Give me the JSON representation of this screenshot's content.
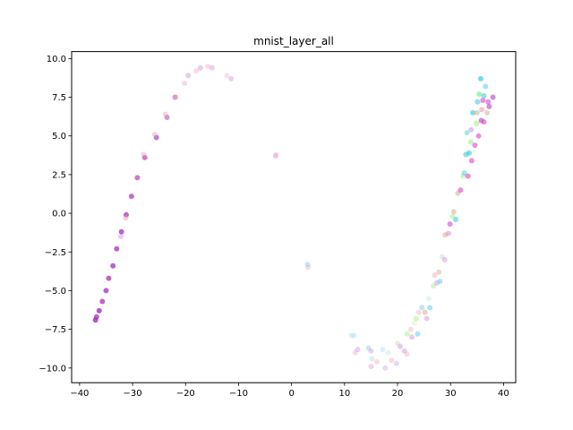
{
  "chart_data": {
    "type": "scatter",
    "title": "mnist_layer_all",
    "xlabel": "",
    "ylabel": "",
    "xlim": [
      -41.5,
      42.3
    ],
    "ylim": [
      -10.95,
      10.45
    ],
    "xticks": [
      -40,
      -30,
      -20,
      -10,
      0,
      10,
      20,
      30,
      40
    ],
    "yticks": [
      -10.0,
      -7.5,
      -5.0,
      -2.5,
      0.0,
      2.5,
      5.0,
      7.5,
      10.0
    ],
    "ytick_labels": [
      "−10.0",
      "−7.5",
      "−5.0",
      "−2.5",
      "0.0",
      "2.5",
      "5.0",
      "7.5",
      "10.0"
    ],
    "xtick_labels": [
      "−40",
      "−30",
      "−20",
      "−10",
      "0",
      "10",
      "20",
      "30",
      "40"
    ],
    "grid": false,
    "legend": "none",
    "points": [
      {
        "x": -37.0,
        "y": -6.9,
        "c": "#9922bb",
        "a": 0.75
      },
      {
        "x": -36.8,
        "y": -6.7,
        "c": "#aa22aa",
        "a": 0.7
      },
      {
        "x": -36.3,
        "y": -6.3,
        "c": "#9922bb",
        "a": 0.75
      },
      {
        "x": -35.7,
        "y": -5.7,
        "c": "#aa22aa",
        "a": 0.7
      },
      {
        "x": -35.0,
        "y": -5.0,
        "c": "#9922bb",
        "a": 0.7
      },
      {
        "x": -34.5,
        "y": -4.2,
        "c": "#aa22aa",
        "a": 0.7
      },
      {
        "x": -33.7,
        "y": -3.4,
        "c": "#9922bb",
        "a": 0.7
      },
      {
        "x": -33.0,
        "y": -2.3,
        "c": "#aa22aa",
        "a": 0.7
      },
      {
        "x": -32.1,
        "y": -1.2,
        "c": "#9922bb",
        "a": 0.7
      },
      {
        "x": -32.2,
        "y": -1.5,
        "c": "#dd88dd",
        "a": 0.45
      },
      {
        "x": -31.2,
        "y": -0.1,
        "c": "#aa22aa",
        "a": 0.7
      },
      {
        "x": -31.3,
        "y": -0.3,
        "c": "#ee99bb",
        "a": 0.45
      },
      {
        "x": -30.2,
        "y": 1.1,
        "c": "#9922bb",
        "a": 0.65
      },
      {
        "x": -29.1,
        "y": 2.3,
        "c": "#aa22aa",
        "a": 0.6
      },
      {
        "x": -27.7,
        "y": 3.6,
        "c": "#aa22aa",
        "a": 0.6
      },
      {
        "x": -27.9,
        "y": 3.8,
        "c": "#ee99bb",
        "a": 0.45
      },
      {
        "x": -25.5,
        "y": 4.9,
        "c": "#9922bb",
        "a": 0.6
      },
      {
        "x": -25.8,
        "y": 5.1,
        "c": "#ee99aa",
        "a": 0.45
      },
      {
        "x": -23.5,
        "y": 6.2,
        "c": "#aa44bb",
        "a": 0.55
      },
      {
        "x": -23.8,
        "y": 6.4,
        "c": "#ee99aa",
        "a": 0.45
      },
      {
        "x": -22.0,
        "y": 7.5,
        "c": "#aa44bb",
        "a": 0.5
      },
      {
        "x": -21.8,
        "y": 7.5,
        "c": "#ee99aa",
        "a": 0.4
      },
      {
        "x": -20.2,
        "y": 8.4,
        "c": "#ee99aa",
        "a": 0.35
      },
      {
        "x": -19.5,
        "y": 8.9,
        "c": "#cc88dd",
        "a": 0.45
      },
      {
        "x": -18.0,
        "y": 9.2,
        "c": "#ee99aa",
        "a": 0.35
      },
      {
        "x": -17.2,
        "y": 9.4,
        "c": "#cc88dd",
        "a": 0.45
      },
      {
        "x": -15.8,
        "y": 9.5,
        "c": "#ee99aa",
        "a": 0.35
      },
      {
        "x": -15.0,
        "y": 9.4,
        "c": "#cc88dd",
        "a": 0.4
      },
      {
        "x": -12.2,
        "y": 8.9,
        "c": "#ee99aa",
        "a": 0.3
      },
      {
        "x": -11.4,
        "y": 8.7,
        "c": "#cc88dd",
        "a": 0.4
      },
      {
        "x": -3.0,
        "y": 3.7,
        "c": "#cc88dd",
        "a": 0.4
      },
      {
        "x": -2.9,
        "y": 3.8,
        "c": "#ee99aa",
        "a": 0.3
      },
      {
        "x": 3.0,
        "y": -3.3,
        "c": "#88ccdd",
        "a": 0.45
      },
      {
        "x": 3.1,
        "y": -3.5,
        "c": "#ee99aa",
        "a": 0.35
      },
      {
        "x": 11.3,
        "y": -7.9,
        "c": "#aaddee",
        "a": 0.45
      },
      {
        "x": 11.8,
        "y": -7.9,
        "c": "#aaddee",
        "a": 0.45
      },
      {
        "x": 12.0,
        "y": -9.0,
        "c": "#ee99aa",
        "a": 0.35
      },
      {
        "x": 12.5,
        "y": -8.8,
        "c": "#cc88dd",
        "a": 0.4
      },
      {
        "x": 14.5,
        "y": -8.7,
        "c": "#88ccdd",
        "a": 0.45
      },
      {
        "x": 15.0,
        "y": -8.9,
        "c": "#cc88dd",
        "a": 0.4
      },
      {
        "x": 15.2,
        "y": -9.4,
        "c": "#aaddee",
        "a": 0.45
      },
      {
        "x": 15.0,
        "y": -9.9,
        "c": "#cc88dd",
        "a": 0.35
      },
      {
        "x": 16.1,
        "y": -9.6,
        "c": "#ee99aa",
        "a": 0.35
      },
      {
        "x": 17.2,
        "y": -8.8,
        "c": "#aaddee",
        "a": 0.4
      },
      {
        "x": 17.7,
        "y": -10.0,
        "c": "#cc88dd",
        "a": 0.35
      },
      {
        "x": 18.2,
        "y": -9.0,
        "c": "#bbeecc",
        "a": 0.45
      },
      {
        "x": 18.9,
        "y": -9.5,
        "c": "#ee99aa",
        "a": 0.35
      },
      {
        "x": 19.8,
        "y": -9.7,
        "c": "#cc88dd",
        "a": 0.35
      },
      {
        "x": 20.0,
        "y": -8.4,
        "c": "#ccddaa",
        "a": 0.45
      },
      {
        "x": 20.5,
        "y": -8.6,
        "c": "#cc88dd",
        "a": 0.45
      },
      {
        "x": 21.3,
        "y": -8.9,
        "c": "#cc88dd",
        "a": 0.45
      },
      {
        "x": 21.8,
        "y": -9.1,
        "c": "#ee99aa",
        "a": 0.35
      },
      {
        "x": 21.8,
        "y": -7.8,
        "c": "#aaee88",
        "a": 0.5
      },
      {
        "x": 22.5,
        "y": -7.5,
        "c": "#ee99aa",
        "a": 0.35
      },
      {
        "x": 22.7,
        "y": -8.0,
        "c": "#cc88dd",
        "a": 0.45
      },
      {
        "x": 23.2,
        "y": -7.1,
        "c": "#ddeebb",
        "a": 0.45
      },
      {
        "x": 23.5,
        "y": -6.8,
        "c": "#aaee88",
        "a": 0.5
      },
      {
        "x": 23.8,
        "y": -7.8,
        "c": "#66ccee",
        "a": 0.55
      },
      {
        "x": 24.0,
        "y": -6.4,
        "c": "#ee99aa",
        "a": 0.35
      },
      {
        "x": 24.6,
        "y": -6.1,
        "c": "#88ccdd",
        "a": 0.5
      },
      {
        "x": 25.2,
        "y": -6.4,
        "c": "#ccaa88",
        "a": 0.5
      },
      {
        "x": 25.5,
        "y": -6.8,
        "c": "#cc88dd",
        "a": 0.45
      },
      {
        "x": 26.1,
        "y": -6.1,
        "c": "#66ccee",
        "a": 0.55
      },
      {
        "x": 25.9,
        "y": -5.5,
        "c": "#bbeecc",
        "a": 0.45
      },
      {
        "x": 26.8,
        "y": -4.7,
        "c": "#aaee88",
        "a": 0.5
      },
      {
        "x": 27.0,
        "y": -4.0,
        "c": "#ee99aa",
        "a": 0.4
      },
      {
        "x": 27.4,
        "y": -4.5,
        "c": "#cc88dd",
        "a": 0.45
      },
      {
        "x": 28.0,
        "y": -4.4,
        "c": "#66ccee",
        "a": 0.55
      },
      {
        "x": 27.8,
        "y": -3.8,
        "c": "#ccaa88",
        "a": 0.45
      },
      {
        "x": 28.4,
        "y": -2.8,
        "c": "#bbddcc",
        "a": 0.45
      },
      {
        "x": 28.9,
        "y": -3.0,
        "c": "#cc88dd",
        "a": 0.45
      },
      {
        "x": 29.0,
        "y": -1.4,
        "c": "#ccaa88",
        "a": 0.5
      },
      {
        "x": 29.6,
        "y": -1.3,
        "c": "#cc88dd",
        "a": 0.5
      },
      {
        "x": 29.9,
        "y": -0.7,
        "c": "#dd44cc",
        "a": 0.6
      },
      {
        "x": 30.4,
        "y": -0.2,
        "c": "#aaee88",
        "a": 0.55
      },
      {
        "x": 30.6,
        "y": 0.1,
        "c": "#ccaa88",
        "a": 0.5
      },
      {
        "x": 31.0,
        "y": -0.4,
        "c": "#44ccdd",
        "a": 0.6
      },
      {
        "x": 31.4,
        "y": 1.3,
        "c": "#ccaa88",
        "a": 0.5
      },
      {
        "x": 31.9,
        "y": 1.5,
        "c": "#dd44cc",
        "a": 0.6
      },
      {
        "x": 32.4,
        "y": 2.4,
        "c": "#aaee88",
        "a": 0.55
      },
      {
        "x": 32.6,
        "y": 2.6,
        "c": "#66ccee",
        "a": 0.6
      },
      {
        "x": 32.9,
        "y": 3.8,
        "c": "#44ccdd",
        "a": 0.6
      },
      {
        "x": 33.3,
        "y": 2.4,
        "c": "#dd44cc",
        "a": 0.6
      },
      {
        "x": 33.5,
        "y": 3.9,
        "c": "#22ccdd",
        "a": 0.6
      },
      {
        "x": 33.1,
        "y": 5.2,
        "c": "#66ddcc",
        "a": 0.6
      },
      {
        "x": 33.8,
        "y": 4.6,
        "c": "#aaee88",
        "a": 0.6
      },
      {
        "x": 34.0,
        "y": 3.4,
        "c": "#dd44cc",
        "a": 0.6
      },
      {
        "x": 33.9,
        "y": 5.4,
        "c": "#cc88dd",
        "a": 0.5
      },
      {
        "x": 34.2,
        "y": 6.5,
        "c": "#22ccdd",
        "a": 0.6
      },
      {
        "x": 34.6,
        "y": 4.4,
        "c": "#dd44cc",
        "a": 0.6
      },
      {
        "x": 34.9,
        "y": 5.8,
        "c": "#aaee88",
        "a": 0.6
      },
      {
        "x": 35.0,
        "y": 6.5,
        "c": "#ccaa88",
        "a": 0.5
      },
      {
        "x": 35.3,
        "y": 5.0,
        "c": "#dd44cc",
        "a": 0.6
      },
      {
        "x": 35.1,
        "y": 7.2,
        "c": "#44ccdd",
        "a": 0.6
      },
      {
        "x": 35.4,
        "y": 7.7,
        "c": "#66ee88",
        "a": 0.6
      },
      {
        "x": 35.7,
        "y": 8.7,
        "c": "#22ccdd",
        "a": 0.65
      },
      {
        "x": 35.8,
        "y": 6.0,
        "c": "#aa44bb",
        "a": 0.6
      },
      {
        "x": 35.9,
        "y": 6.7,
        "c": "#ee88aa",
        "a": 0.5
      },
      {
        "x": 36.1,
        "y": 7.3,
        "c": "#dd44cc",
        "a": 0.6
      },
      {
        "x": 36.3,
        "y": 5.9,
        "c": "#dd44cc",
        "a": 0.6
      },
      {
        "x": 36.3,
        "y": 7.6,
        "c": "#44ccdd",
        "a": 0.6
      },
      {
        "x": 36.6,
        "y": 8.2,
        "c": "#66ccee",
        "a": 0.6
      },
      {
        "x": 36.9,
        "y": 6.5,
        "c": "#ccaa88",
        "a": 0.5
      },
      {
        "x": 37.1,
        "y": 7.2,
        "c": "#dd44cc",
        "a": 0.6
      },
      {
        "x": 37.3,
        "y": 6.9,
        "c": "#aa44bb",
        "a": 0.6
      },
      {
        "x": 38.0,
        "y": 7.5,
        "c": "#aa44bb",
        "a": 0.6
      }
    ]
  }
}
